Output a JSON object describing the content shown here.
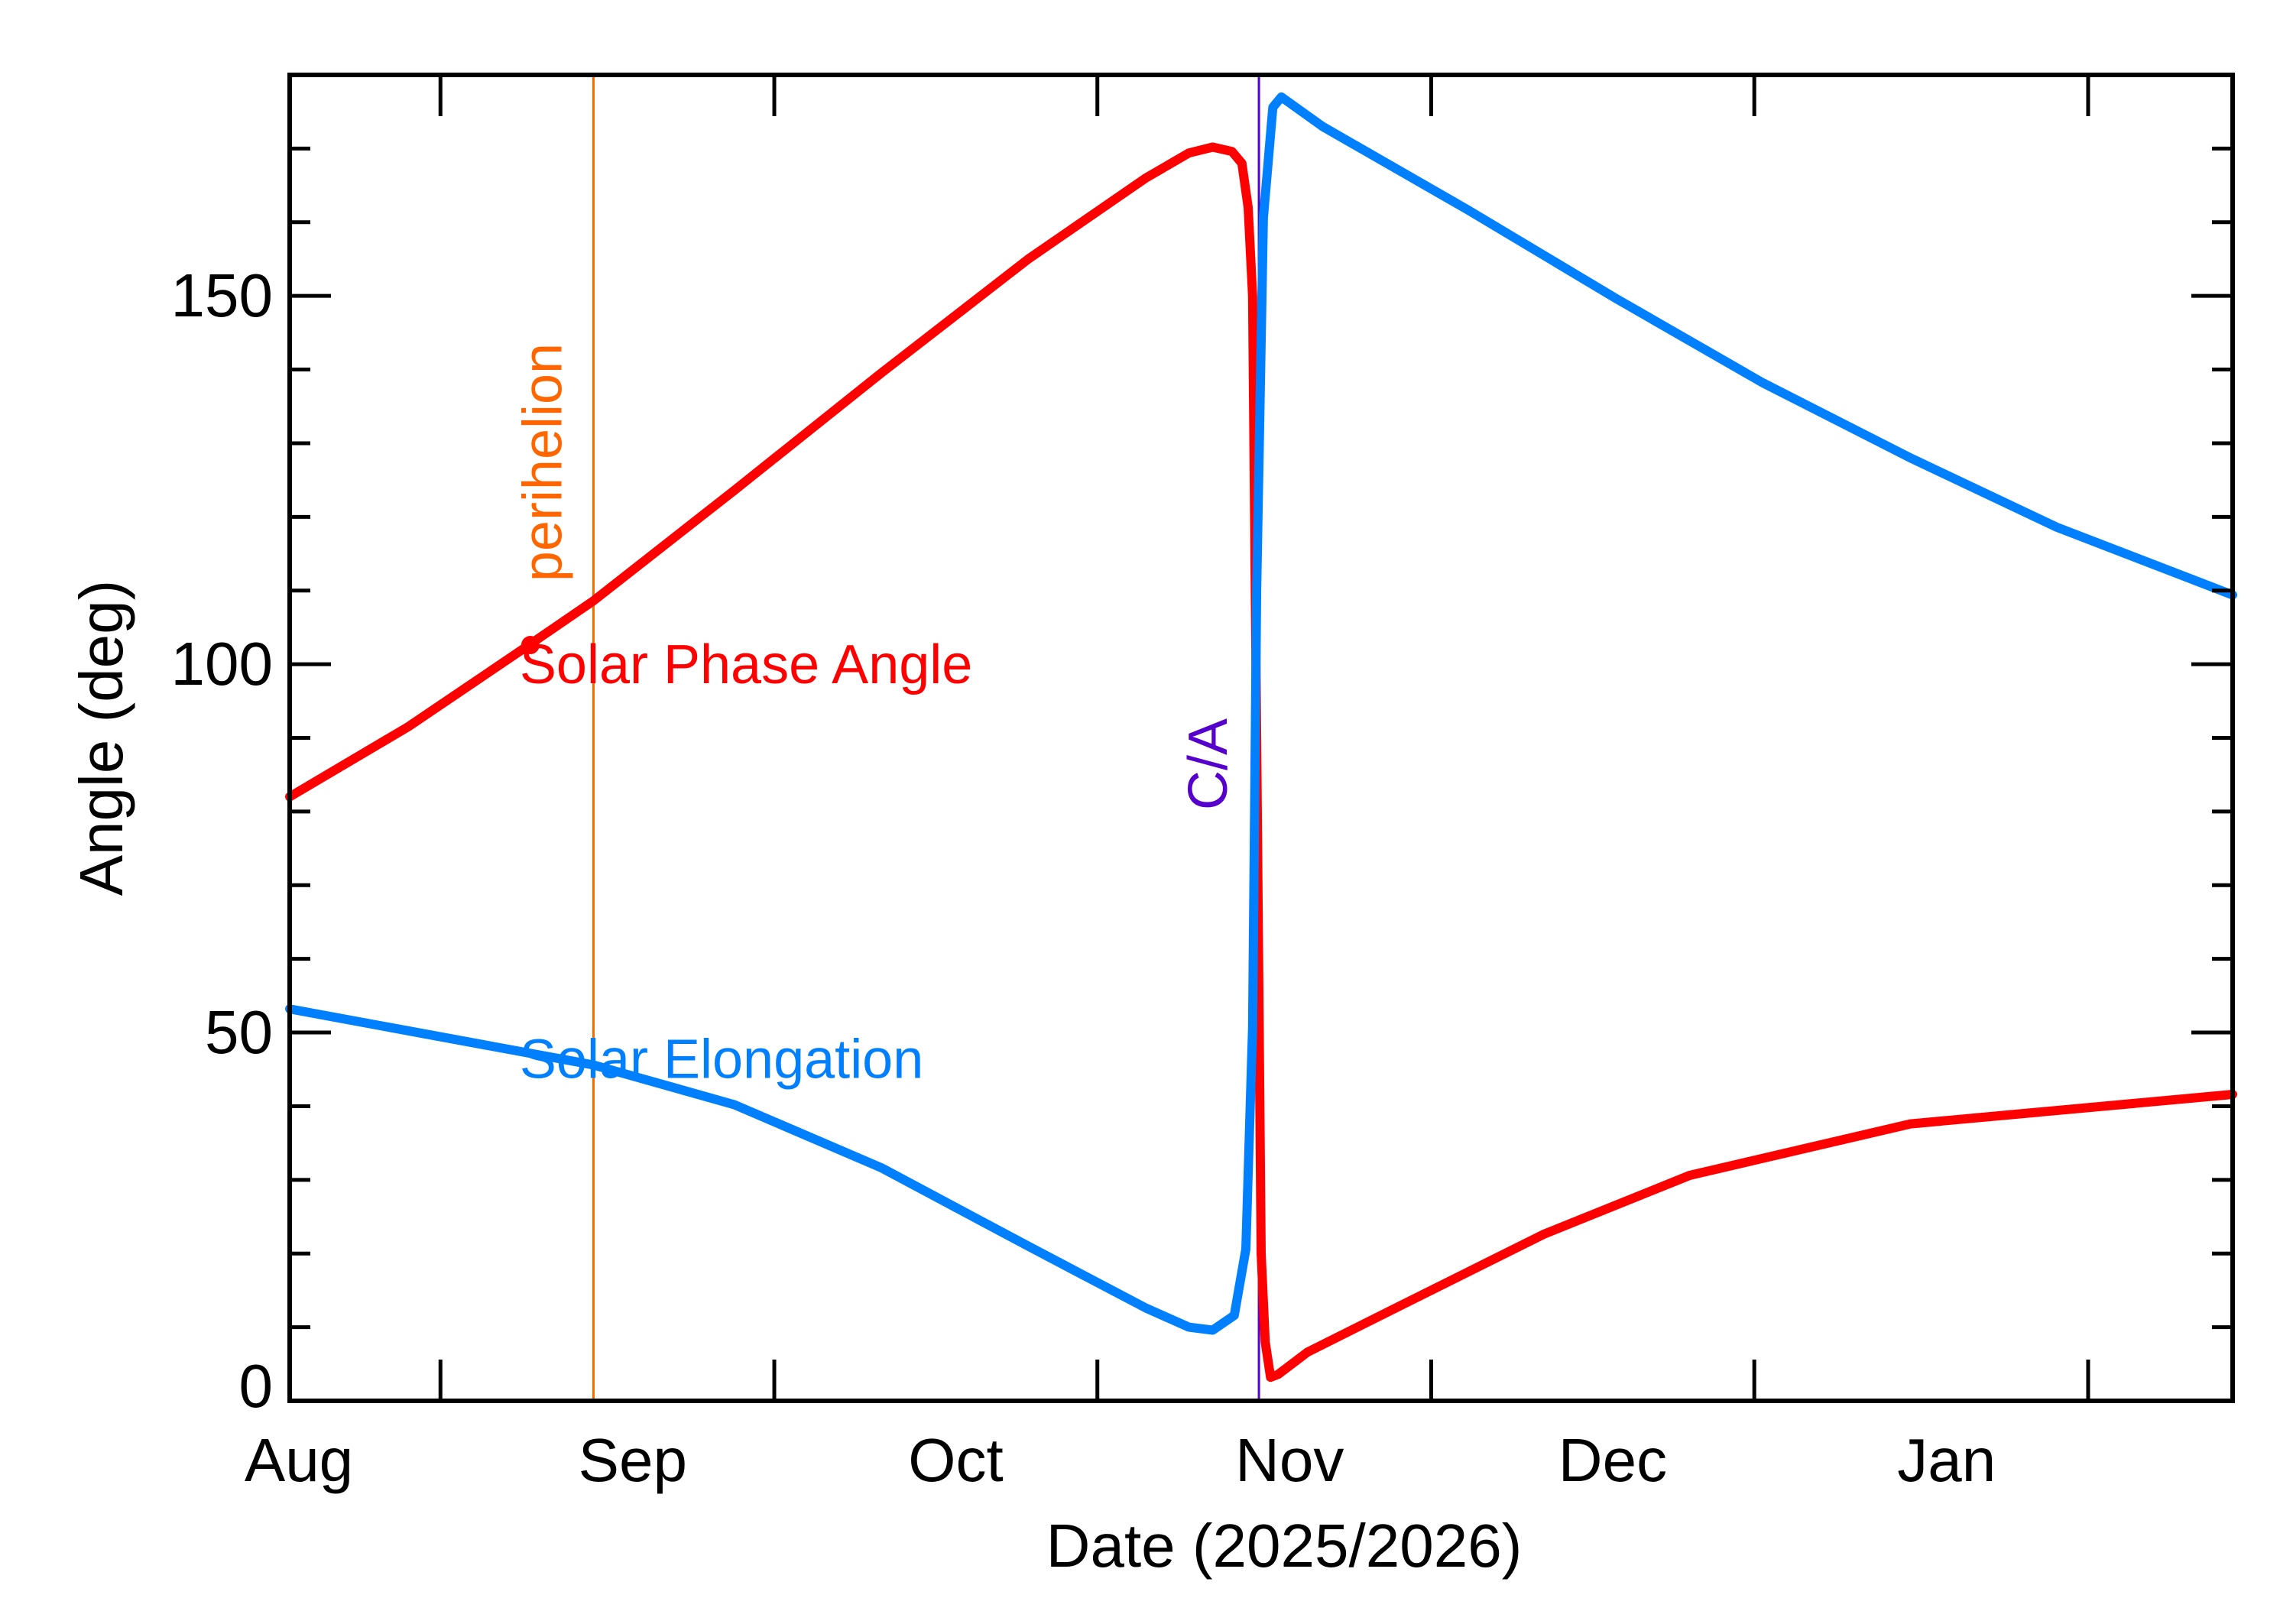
{
  "chart_data": {
    "type": "line",
    "title": "",
    "xlabel": "Date (2025/2026)",
    "ylabel": "Angle (deg)",
    "xlim": [
      "2025-08-01T00:00",
      "2026-01-28T10:00"
    ],
    "ylim": [
      0,
      180
    ],
    "x_tick_labels": [
      {
        "date": "2025-08-01",
        "label": "Aug"
      },
      {
        "date": "2025-09-01",
        "label": "Sep"
      },
      {
        "date": "2025-10-01",
        "label": "Oct"
      },
      {
        "date": "2025-11-01",
        "label": "Nov"
      },
      {
        "date": "2025-12-01",
        "label": "Dec"
      },
      {
        "date": "2026-01-01",
        "label": "Jan"
      }
    ],
    "x_major_ticks": [
      "2025-08-15",
      "2025-09-15",
      "2025-10-15",
      "2025-11-15",
      "2025-12-15",
      "2026-01-15"
    ],
    "y_ticks": [
      0,
      50,
      100,
      150
    ],
    "y_minor_step": 10,
    "grid": false,
    "series": [
      {
        "name": "Solar Phase Angle",
        "color": "#ff0000",
        "points": [
          [
            "2025-08-01T00:00",
            82.0
          ],
          [
            "2025-08-12T00:00",
            91.5
          ],
          [
            "2025-08-23T05:00",
            102.6
          ],
          [
            "2025-08-29T05:00",
            108.6
          ],
          [
            "2025-09-11T07:00",
            123.6
          ],
          [
            "2025-09-25T00:00",
            139.6
          ],
          [
            "2025-10-08T14:00",
            155.0
          ],
          [
            "2025-10-19T12:00",
            166.0
          ],
          [
            "2025-10-23T12:00",
            169.4
          ],
          [
            "2025-10-25T17:00",
            170.2
          ],
          [
            "2025-10-27T12:00",
            169.6
          ],
          [
            "2025-10-28T10:00",
            168.0
          ],
          [
            "2025-10-29T00:00",
            162.0
          ],
          [
            "2025-10-29T10:00",
            150.0
          ],
          [
            "2025-10-29T19:00",
            90.0
          ],
          [
            "2025-10-30T05:00",
            20.0
          ],
          [
            "2025-10-30T14:00",
            8.0
          ],
          [
            "2025-10-31T02:00",
            3.2
          ],
          [
            "2025-10-31T19:00",
            3.6
          ],
          [
            "2025-11-03T12:00",
            6.6
          ],
          [
            "2025-11-11T17:00",
            12.6
          ],
          [
            "2025-11-25T10:00",
            22.6
          ],
          [
            "2025-12-09T00:00",
            30.6
          ],
          [
            "2025-12-29T12:00",
            37.6
          ],
          [
            "2026-01-28T10:00",
            41.6
          ]
        ]
      },
      {
        "name": "Solar Elongation",
        "color": "#0080ff",
        "points": [
          [
            "2025-08-01T00:00",
            53.2
          ],
          [
            "2025-08-29T05:00",
            45.6
          ],
          [
            "2025-09-11T07:00",
            40.2
          ],
          [
            "2025-09-25T00:00",
            31.6
          ],
          [
            "2025-10-08T14:00",
            21.0
          ],
          [
            "2025-10-19T12:00",
            12.6
          ],
          [
            "2025-10-23T12:00",
            10.0
          ],
          [
            "2025-10-25T17:00",
            9.6
          ],
          [
            "2025-10-27T17:00",
            11.6
          ],
          [
            "2025-10-28T19:00",
            20.6
          ],
          [
            "2025-10-29T10:00",
            50.6
          ],
          [
            "2025-10-29T19:00",
            110.0
          ],
          [
            "2025-10-30T10:00",
            160.6
          ],
          [
            "2025-10-31T07:00",
            175.6
          ],
          [
            "2025-11-01T02:00",
            177.0
          ],
          [
            "2025-11-04T22:00",
            173.0
          ],
          [
            "2025-11-18T12:00",
            161.6
          ],
          [
            "2025-12-02T05:00",
            149.6
          ],
          [
            "2025-12-15T19:00",
            138.2
          ],
          [
            "2025-12-29T12:00",
            128.0
          ],
          [
            "2026-01-12T02:00",
            118.6
          ],
          [
            "2026-01-28T10:00",
            109.4
          ]
        ]
      }
    ],
    "markers": [
      {
        "label": "perihelion",
        "date": "2025-08-29T05:00",
        "color": "#ff6600"
      },
      {
        "label": "C/A",
        "date": "2025-10-30T00:00",
        "color": "#5500cc"
      }
    ],
    "annotations": [
      {
        "text": "Solar Phase Angle",
        "color": "#ff0000",
        "date": "2025-08-23T05:00",
        "y": 102.6
      },
      {
        "text": "Solar Elongation",
        "color": "#0080ff",
        "date": "2025-08-23T05:00",
        "y": 49
      }
    ]
  }
}
